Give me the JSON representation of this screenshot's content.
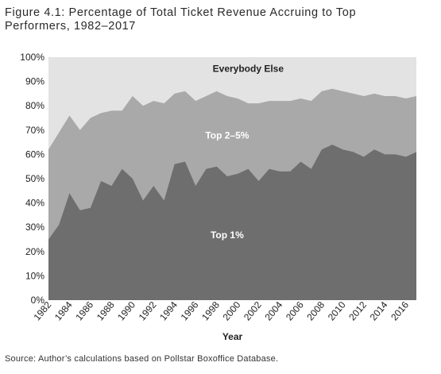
{
  "figure": {
    "title": "Figure 4.1: Percentage of Total Ticket Revenue Accruing to Top\nPerformers, 1982–2017",
    "source": "Source: Author’s calculations based on Pollstar Boxoffice Database."
  },
  "chart_data": {
    "type": "area",
    "stacked": true,
    "xlabel": "Year",
    "ylabel": "",
    "ylim": [
      0,
      100
    ],
    "yticks": [
      "0%",
      "10%",
      "20%",
      "30%",
      "40%",
      "50%",
      "60%",
      "70%",
      "80%",
      "90%",
      "100%"
    ],
    "x": [
      1982,
      1983,
      1984,
      1985,
      1986,
      1987,
      1988,
      1989,
      1990,
      1991,
      1992,
      1993,
      1994,
      1995,
      1996,
      1997,
      1998,
      1999,
      2000,
      2001,
      2002,
      2003,
      2004,
      2005,
      2006,
      2007,
      2008,
      2009,
      2010,
      2011,
      2012,
      2013,
      2014,
      2015,
      2016,
      2017
    ],
    "xticks": [
      "1982",
      "1984",
      "1986",
      "1988",
      "1990",
      "1992",
      "1994",
      "1996",
      "1998",
      "2000",
      "2002",
      "2004",
      "2006",
      "2008",
      "2010",
      "2012",
      "2014",
      "2016"
    ],
    "series": [
      {
        "name": "Top 1%",
        "color": "#6e6e6e",
        "values": [
          25,
          31,
          44,
          37,
          38,
          49,
          47,
          54,
          50,
          41,
          47,
          41,
          56,
          57,
          47,
          54,
          55,
          51,
          52,
          54,
          49,
          54,
          53,
          53,
          57,
          54,
          62,
          64,
          62,
          61,
          59,
          62,
          60,
          60,
          59,
          61
        ]
      },
      {
        "name": "Top 2–5%",
        "color": "#a9a9a9",
        "values": [
          62,
          69,
          76,
          70,
          75,
          77,
          78,
          78,
          84,
          80,
          82,
          81,
          85,
          86,
          82,
          84,
          86,
          84,
          83,
          81,
          81,
          82,
          82,
          82,
          83,
          82,
          86,
          87,
          86,
          85,
          84,
          85,
          84,
          84,
          83,
          84
        ]
      },
      {
        "name": "Everybody Else",
        "color": "#e3e3e3",
        "values": [
          100,
          100,
          100,
          100,
          100,
          100,
          100,
          100,
          100,
          100,
          100,
          100,
          100,
          100,
          100,
          100,
          100,
          100,
          100,
          100,
          100,
          100,
          100,
          100,
          100,
          100,
          100,
          100,
          100,
          100,
          100,
          100,
          100,
          100,
          100,
          100
        ]
      }
    ],
    "labels": [
      {
        "text": "Everybody Else",
        "color": "#222222",
        "x": 2001,
        "y": 94
      },
      {
        "text": "Top 2–5%",
        "color": "#ffffff",
        "x": 1999,
        "y": 66.5
      },
      {
        "text": "Top 1%",
        "color": "#ffffff",
        "x": 1999,
        "y": 25.5
      }
    ],
    "grid": false
  }
}
